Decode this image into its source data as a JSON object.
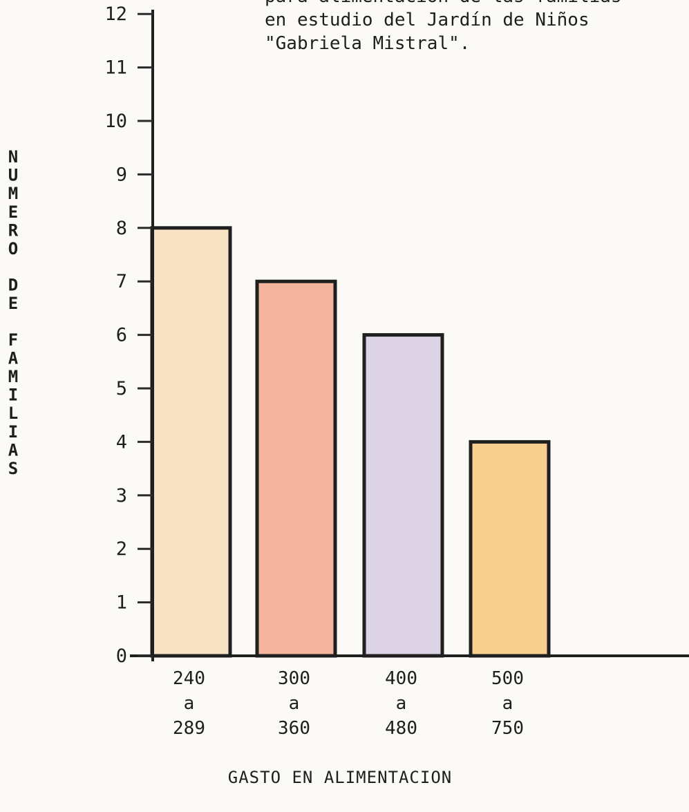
{
  "chart_data": {
    "type": "bar",
    "title_lines": [
      "para alimentación de las familias",
      "en estudio del Jardín de Niños",
      "\"Gabriela Mistral\"."
    ],
    "categories": [
      [
        "240",
        "a",
        "289"
      ],
      [
        "300",
        "a",
        "360"
      ],
      [
        "400",
        "a",
        "480"
      ],
      [
        "500",
        "a",
        "750"
      ]
    ],
    "values": [
      8,
      7,
      6,
      4
    ],
    "bar_colors": [
      "#f8e2c4",
      "#f5b49e",
      "#dcd3e6",
      "#f7cf8f"
    ],
    "xlabel": "GASTO EN ALIMENTACION",
    "ylabel": "NUMERO DE FAMILIAS",
    "ylim": [
      0,
      12
    ],
    "yticks": [
      "0",
      "1",
      "2",
      "3",
      "4",
      "5",
      "6",
      "7",
      "8",
      "9",
      "10",
      "11",
      "12"
    ],
    "grid": false,
    "legend": "none"
  }
}
